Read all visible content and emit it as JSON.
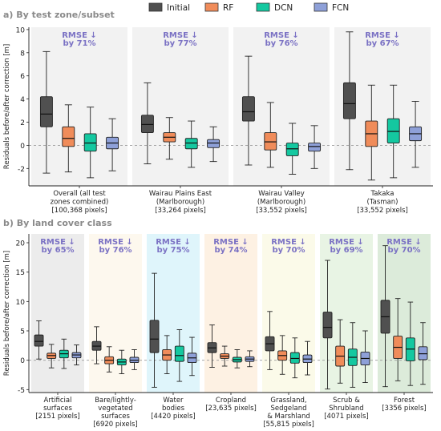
{
  "legend": {
    "items": [
      {
        "label": "Initial",
        "color": "#505050"
      },
      {
        "label": "RF",
        "color": "#f08c5a"
      },
      {
        "label": "DCN",
        "color": "#14c8a0"
      },
      {
        "label": "FCN",
        "color": "#8ea0d8"
      }
    ]
  },
  "chart_data": [
    {
      "type": "boxplot",
      "panel_title": "a) By test zone/subset",
      "ylabel": "Residuals before/after correction [m]",
      "ylim": [
        -3.5,
        10.2
      ],
      "yticks": [
        -2,
        0,
        2,
        4,
        6,
        8,
        10
      ],
      "reference_line": 0,
      "series": [
        "Initial",
        "RF",
        "DCN",
        "FCN"
      ],
      "groups": [
        {
          "label_lines": [
            "Overall (all test",
            "zones combined)",
            "[100,368 pixels]"
          ],
          "rmse_line1": "RMSE ↓",
          "rmse_line2": "by 71%",
          "bg": "#f2f2f2",
          "boxes": [
            {
              "series": "Initial",
              "whislo": -2.4,
              "q1": 1.6,
              "med": 2.7,
              "q3": 4.2,
              "whishi": 8.1
            },
            {
              "series": "RF",
              "whislo": -2.3,
              "q1": -0.1,
              "med": 0.6,
              "q3": 1.6,
              "whishi": 3.5
            },
            {
              "series": "DCN",
              "whislo": -2.8,
              "q1": -0.5,
              "med": 0.2,
              "q3": 1.0,
              "whishi": 3.3
            },
            {
              "series": "FCN",
              "whislo": -2.2,
              "q1": -0.3,
              "med": 0.2,
              "q3": 0.7,
              "whishi": 2.3
            }
          ]
        },
        {
          "label_lines": [
            "Wairau Plains East",
            "(Marlborough)",
            "[33,264 pixels]"
          ],
          "rmse_line1": "RMSE ↓",
          "rmse_line2": "by 77%",
          "bg": "#f2f2f2",
          "boxes": [
            {
              "series": "Initial",
              "whislo": -1.6,
              "q1": 1.1,
              "med": 1.8,
              "q3": 2.6,
              "whishi": 5.4
            },
            {
              "series": "RF",
              "whislo": -1.2,
              "q1": 0.3,
              "med": 0.7,
              "q3": 1.1,
              "whishi": 2.4
            },
            {
              "series": "DCN",
              "whislo": -1.9,
              "q1": -0.3,
              "med": 0.2,
              "q3": 0.6,
              "whishi": 2.1
            },
            {
              "series": "FCN",
              "whislo": -1.4,
              "q1": -0.2,
              "med": 0.2,
              "q3": 0.5,
              "whishi": 1.6
            }
          ]
        },
        {
          "label_lines": [
            "Wairau Valley",
            "(Marlborough)",
            "[33,552 pixels]"
          ],
          "rmse_line1": "RMSE ↓",
          "rmse_line2": "by 76%",
          "bg": "#f2f2f2",
          "boxes": [
            {
              "series": "Initial",
              "whislo": -1.7,
              "q1": 2.1,
              "med": 2.9,
              "q3": 4.2,
              "whishi": 7.7
            },
            {
              "series": "RF",
              "whislo": -1.9,
              "q1": -0.4,
              "med": 0.3,
              "q3": 1.1,
              "whishi": 3.7
            },
            {
              "series": "DCN",
              "whislo": -2.5,
              "q1": -0.9,
              "med": -0.3,
              "q3": 0.2,
              "whishi": 1.9
            },
            {
              "series": "FCN",
              "whislo": -2.0,
              "q1": -0.5,
              "med": -0.1,
              "q3": 0.2,
              "whishi": 1.7
            }
          ]
        },
        {
          "label_lines": [
            "Takaka",
            "(Tasman)",
            "[33,552 pixels]"
          ],
          "rmse_line1": "RMSE ↓",
          "rmse_line2": "by 67%",
          "bg": "#f2f2f2",
          "boxes": [
            {
              "series": "Initial",
              "whislo": -2.1,
              "q1": 2.3,
              "med": 3.6,
              "q3": 5.4,
              "whishi": 9.8
            },
            {
              "series": "RF",
              "whislo": -3.0,
              "q1": -0.1,
              "med": 1.0,
              "q3": 2.1,
              "whishi": 5.2
            },
            {
              "series": "DCN",
              "whislo": -2.8,
              "q1": 0.2,
              "med": 1.2,
              "q3": 2.3,
              "whishi": 5.2
            },
            {
              "series": "FCN",
              "whislo": -1.9,
              "q1": 0.4,
              "med": 1.0,
              "q3": 1.6,
              "whishi": 3.8
            }
          ]
        }
      ]
    },
    {
      "type": "boxplot",
      "panel_title": "b) By land cover class",
      "ylabel": "Residuals before/after correction [m]",
      "ylim": [
        -5.5,
        21.5
      ],
      "yticks": [
        -5,
        0,
        5,
        10,
        15,
        20
      ],
      "reference_line": 0,
      "series": [
        "Initial",
        "RF",
        "DCN",
        "FCN"
      ],
      "groups": [
        {
          "label_lines": [
            "Artificial",
            "surfaces",
            "[2151 pixels]"
          ],
          "rmse_line1": "RMSE ↓",
          "rmse_line2": "by 65%",
          "bg": "#ececec",
          "boxes": [
            {
              "series": "Initial",
              "whislo": 0.2,
              "q1": 2.4,
              "med": 3.2,
              "q3": 4.3,
              "whishi": 6.7
            },
            {
              "series": "RF",
              "whislo": -1.3,
              "q1": 0.3,
              "med": 0.8,
              "q3": 1.2,
              "whishi": 2.7
            },
            {
              "series": "DCN",
              "whislo": -1.4,
              "q1": 0.4,
              "med": 1.1,
              "q3": 1.7,
              "whishi": 3.6
            },
            {
              "series": "FCN",
              "whislo": -0.8,
              "q1": 0.4,
              "med": 0.9,
              "q3": 1.3,
              "whishi": 2.6
            }
          ]
        },
        {
          "label_lines": [
            "Bare/lightly-",
            "vegetated",
            "surfaces",
            "[6920 pixels]"
          ],
          "rmse_line1": "RMSE ↓",
          "rmse_line2": "by 76%",
          "bg": "#fdf8ee",
          "boxes": [
            {
              "series": "Initial",
              "whislo": -0.6,
              "q1": 1.7,
              "med": 2.4,
              "q3": 3.2,
              "whishi": 5.7
            },
            {
              "series": "RF",
              "whislo": -2.0,
              "q1": -0.6,
              "med": 0.0,
              "q3": 0.6,
              "whishi": 2.3
            },
            {
              "series": "DCN",
              "whislo": -2.3,
              "q1": -0.8,
              "med": -0.3,
              "q3": 0.2,
              "whishi": 1.7
            },
            {
              "series": "FCN",
              "whislo": -1.6,
              "q1": -0.4,
              "med": 0.0,
              "q3": 0.5,
              "whishi": 1.8
            }
          ]
        },
        {
          "label_lines": [
            "Water",
            "bodies",
            "[4420 pixels]"
          ],
          "rmse_line1": "RMSE ↓",
          "rmse_line2": "by 75%",
          "bg": "#dff5fb",
          "boxes": [
            {
              "series": "Initial",
              "whislo": -4.6,
              "q1": 1.3,
              "med": 3.6,
              "q3": 6.8,
              "whishi": 14.8
            },
            {
              "series": "RF",
              "whislo": -2.3,
              "q1": 0.0,
              "med": 0.9,
              "q3": 1.8,
              "whishi": 4.2
            },
            {
              "series": "DCN",
              "whislo": -3.6,
              "q1": -0.2,
              "med": 0.8,
              "q3": 2.4,
              "whishi": 5.2
            },
            {
              "series": "FCN",
              "whislo": -2.6,
              "q1": -0.4,
              "med": 0.4,
              "q3": 1.2,
              "whishi": 3.9
            }
          ]
        },
        {
          "label_lines": [
            "Cropland",
            "[23,635 pixels]"
          ],
          "rmse_line1": "RMSE ↓",
          "rmse_line2": "by 74%",
          "bg": "#fdf1e3",
          "boxes": [
            {
              "series": "Initial",
              "whislo": -1.2,
              "q1": 1.3,
              "med": 2.1,
              "q3": 3.0,
              "whishi": 6.0
            },
            {
              "series": "RF",
              "whislo": -1.0,
              "q1": 0.3,
              "med": 0.7,
              "q3": 1.1,
              "whishi": 2.4
            },
            {
              "series": "DCN",
              "whislo": -1.3,
              "q1": -0.3,
              "med": 0.1,
              "q3": 0.5,
              "whishi": 1.8
            },
            {
              "series": "FCN",
              "whislo": -1.1,
              "q1": -0.2,
              "med": 0.2,
              "q3": 0.6,
              "whishi": 1.6
            }
          ]
        },
        {
          "label_lines": [
            "Grassland,",
            "Sedgeland",
            "& Marshland",
            "[55,815 pixels]"
          ],
          "rmse_line1": "RMSE ↓",
          "rmse_line2": "by 70%",
          "bg": "#fbfae9",
          "boxes": [
            {
              "series": "Initial",
              "whislo": -1.6,
              "q1": 1.6,
              "med": 2.8,
              "q3": 4.0,
              "whishi": 8.3
            },
            {
              "series": "RF",
              "whislo": -2.4,
              "q1": 0.0,
              "med": 0.8,
              "q3": 1.6,
              "whishi": 4.2
            },
            {
              "series": "DCN",
              "whislo": -3.0,
              "q1": -0.5,
              "med": 0.3,
              "q3": 1.3,
              "whishi": 3.8
            },
            {
              "series": "FCN",
              "whislo": -2.5,
              "q1": -0.4,
              "med": 0.2,
              "q3": 0.9,
              "whishi": 3.2
            }
          ]
        },
        {
          "label_lines": [
            "Scrub &",
            "Shrubland",
            "[4071 pixels]"
          ],
          "rmse_line1": "RMSE ↓",
          "rmse_line2": "by 69%",
          "bg": "#e8f4e4",
          "boxes": [
            {
              "series": "Initial",
              "whislo": -4.9,
              "q1": 3.8,
              "med": 5.6,
              "q3": 8.2,
              "whishi": 17.0
            },
            {
              "series": "RF",
              "whislo": -3.9,
              "q1": -1.0,
              "med": 0.7,
              "q3": 2.4,
              "whishi": 6.9
            },
            {
              "series": "DCN",
              "whislo": -4.6,
              "q1": -0.9,
              "med": 0.5,
              "q3": 1.9,
              "whishi": 6.4
            },
            {
              "series": "FCN",
              "whislo": -3.8,
              "q1": -0.8,
              "med": 0.3,
              "q3": 1.4,
              "whishi": 5.0
            }
          ]
        },
        {
          "label_lines": [
            "Forest",
            "[3356 pixels]"
          ],
          "rmse_line1": "RMSE ↓",
          "rmse_line2": "by 70%",
          "bg": "#dcebda",
          "boxes": [
            {
              "series": "Initial",
              "whislo": -4.5,
              "q1": 4.6,
              "med": 7.4,
              "q3": 10.2,
              "whishi": 19.5
            },
            {
              "series": "RF",
              "whislo": -3.5,
              "q1": 0.3,
              "med": 2.2,
              "q3": 4.1,
              "whishi": 10.5
            },
            {
              "series": "DCN",
              "whislo": -4.3,
              "q1": -0.1,
              "med": 1.9,
              "q3": 3.8,
              "whishi": 9.9
            },
            {
              "series": "FCN",
              "whislo": -4.1,
              "q1": 0.1,
              "med": 1.1,
              "q3": 2.3,
              "whishi": 6.4
            }
          ]
        }
      ]
    }
  ]
}
